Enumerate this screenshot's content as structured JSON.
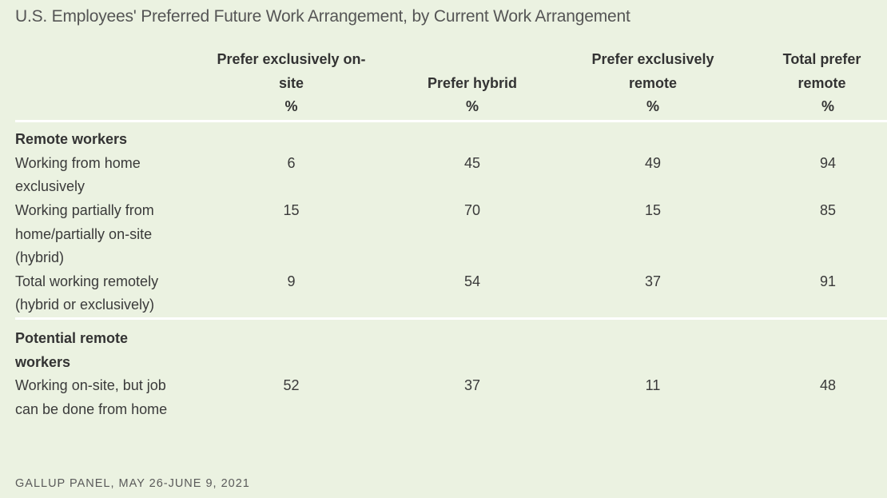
{
  "title": "U.S. Employees' Preferred Future Work Arrangement, by Current Work Arrangement",
  "source": "GALLUP PANEL, MAY 26-JUNE 9, 2021",
  "chart_data": {
    "type": "table",
    "title": "U.S. Employees' Preferred Future Work Arrangement, by Current Work Arrangement",
    "columns": [
      {
        "label": "Prefer exclusively on-site",
        "unit": "%"
      },
      {
        "label": "Prefer hybrid",
        "unit": "%"
      },
      {
        "label": "Prefer exclusively remote",
        "unit": "%"
      },
      {
        "label": "Total prefer remote",
        "unit": "%"
      }
    ],
    "groups": [
      {
        "name": "Remote workers",
        "rows": [
          {
            "label": "Working from home exclusively",
            "values": [
              6,
              45,
              49,
              94
            ]
          },
          {
            "label": "Working partially from home/partially on-site (hybrid)",
            "values": [
              15,
              70,
              15,
              85
            ]
          },
          {
            "label": "Total working remotely (hybrid or exclusively)",
            "values": [
              9,
              54,
              37,
              91
            ]
          }
        ]
      },
      {
        "name": "Potential remote workers",
        "rows": [
          {
            "label": "Working on-site, but job can be done from home",
            "values": [
              52,
              37,
              11,
              48
            ]
          }
        ]
      }
    ]
  }
}
